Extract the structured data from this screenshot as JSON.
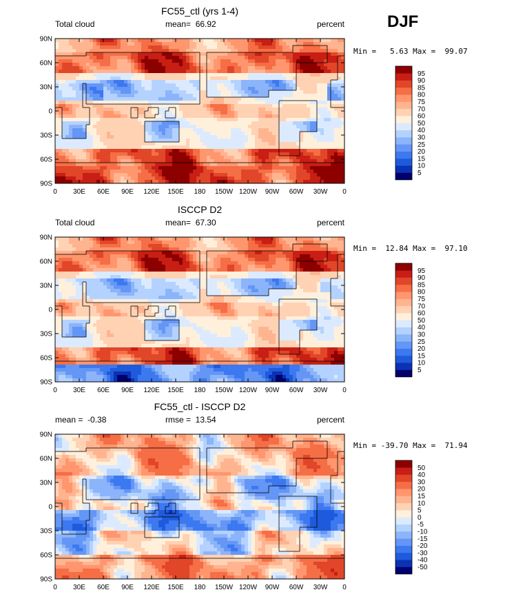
{
  "season_label": "DJF",
  "ticks": {
    "lat": [
      "90N",
      "60N",
      "30N",
      "0",
      "30S",
      "60S",
      "90S"
    ],
    "lon": [
      "0",
      "30E",
      "60E",
      "90E",
      "120E",
      "150E",
      "180",
      "150W",
      "120W",
      "90W",
      "60W",
      "30W",
      "0"
    ]
  },
  "colors": {
    "abs_scale": [
      "#00006e",
      "#0a32b4",
      "#1e5adc",
      "#3c78f0",
      "#6496f5",
      "#8cb4fa",
      "#b4d2ff",
      "#dceaff",
      "#fff0dc",
      "#ffd2b4",
      "#ffb490",
      "#ff966e",
      "#f56e46",
      "#e14628",
      "#c81e14",
      "#8c0000"
    ],
    "diff_scale": [
      "#00006e",
      "#0a32b4",
      "#1e5adc",
      "#3c78f0",
      "#6496f5",
      "#8cb4fa",
      "#b4d2ff",
      "#dceaff",
      "#fff0dc",
      "#ffd2b4",
      "#ffb490",
      "#ff966e",
      "#f56e46",
      "#e14628",
      "#c81e14",
      "#8c0000"
    ]
  },
  "chart_data": [
    {
      "type": "heatmap",
      "title": "FC55_ctl (yrs 1-4)",
      "left_label": "Total cloud",
      "center_label": "mean=  66.92",
      "right_label": "percent",
      "stats": "Min =   5.63 Max =  99.07",
      "colorbar_labels": [
        "5",
        "10",
        "15",
        "20",
        "25",
        "30",
        "40",
        "50",
        "60",
        "70",
        "75",
        "80",
        "85",
        "90",
        "95"
      ],
      "field": "model"
    },
    {
      "type": "heatmap",
      "title": "ISCCP D2",
      "left_label": "Total cloud",
      "center_label": "mean=  67.30",
      "right_label": "percent",
      "stats": "Min =  12.84 Max =  97.10",
      "colorbar_labels": [
        "5",
        "10",
        "15",
        "20",
        "25",
        "30",
        "40",
        "50",
        "60",
        "70",
        "75",
        "80",
        "85",
        "90",
        "95"
      ],
      "field": "obs"
    },
    {
      "type": "heatmap",
      "title": "FC55_ctl - ISCCP D2",
      "left_label": "mean =  -0.38",
      "center_label": "rmse =  13.54",
      "right_label": "percent",
      "stats": "Min = -39.70 Max =  71.94",
      "colorbar_labels": [
        "-50",
        "-40",
        "-30",
        "-20",
        "-15",
        "-10",
        "-5",
        "0",
        "5",
        "10",
        "15",
        "20",
        "30",
        "40",
        "50"
      ],
      "field": "diff"
    }
  ]
}
